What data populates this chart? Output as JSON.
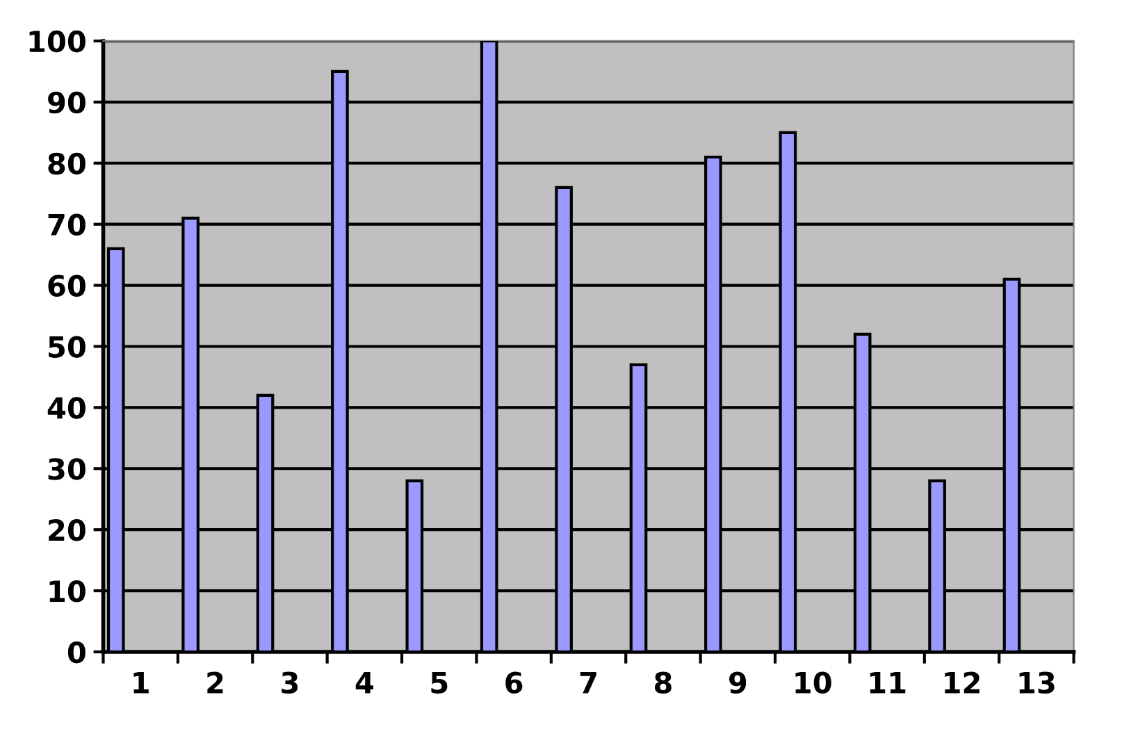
{
  "chart_data": {
    "type": "bar",
    "categories": [
      "1",
      "2",
      "3",
      "4",
      "5",
      "6",
      "7",
      "8",
      "9",
      "10",
      "11",
      "12",
      "13"
    ],
    "values": [
      66,
      71,
      42,
      95,
      28,
      100,
      76,
      47,
      81,
      85,
      52,
      28,
      61
    ],
    "color": "#9999ff",
    "ylim": [
      0,
      100
    ],
    "yticks": [
      0,
      10,
      20,
      30,
      40,
      50,
      60,
      70,
      80,
      90,
      100
    ],
    "grid": "y"
  }
}
